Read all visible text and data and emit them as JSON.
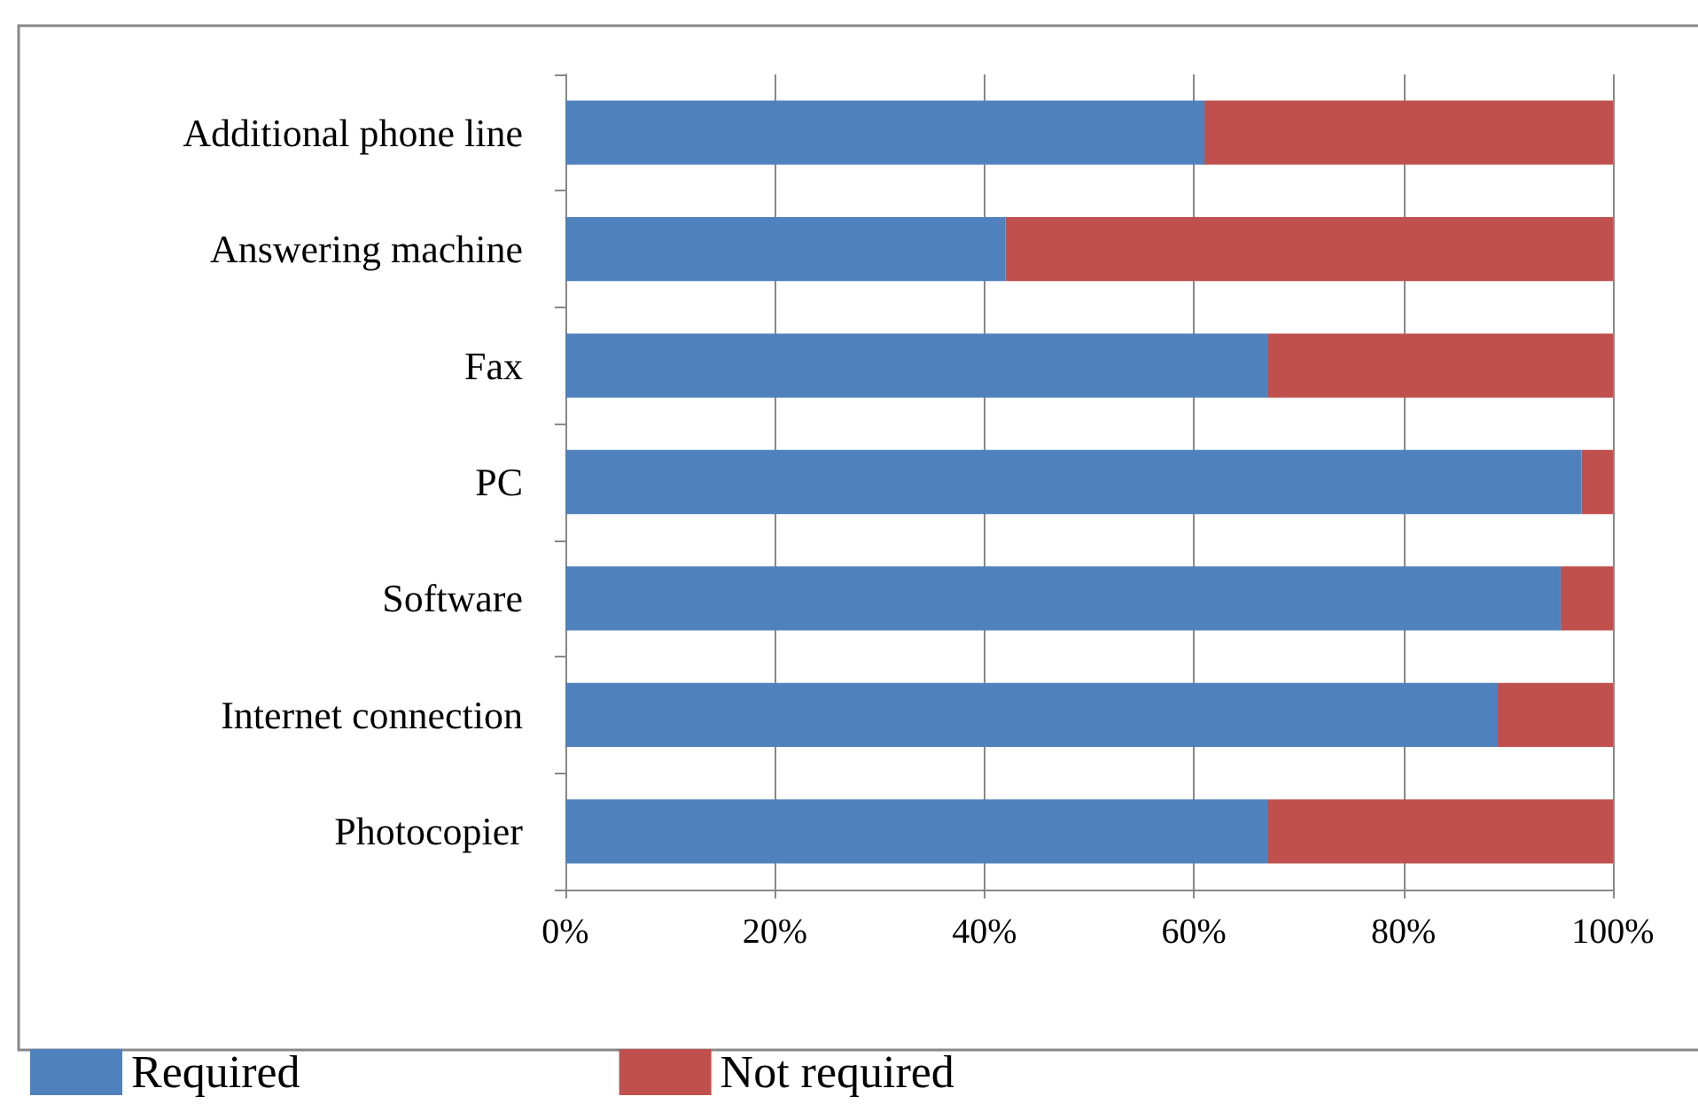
{
  "chart_data": {
    "type": "bar",
    "orientation": "horizontal",
    "stacked": true,
    "categories": [
      "Additional phone line",
      "Answering machine",
      "Fax",
      "PC",
      "Software",
      "Internet connection",
      "Photocopier"
    ],
    "series": [
      {
        "name": "Required",
        "color": "#4f81bd",
        "values": [
          61,
          42,
          67,
          97,
          95,
          89,
          67
        ]
      },
      {
        "name": "Not required",
        "color": "#c0504d",
        "values": [
          39,
          58,
          33,
          3,
          5,
          11,
          33
        ]
      }
    ],
    "xlim": [
      0,
      100
    ],
    "xticks": [
      {
        "value": 0,
        "label": "0%"
      },
      {
        "value": 20,
        "label": "20%"
      },
      {
        "value": 40,
        "label": "40%"
      },
      {
        "value": 60,
        "label": "60%"
      },
      {
        "value": 80,
        "label": "80%"
      },
      {
        "value": 100,
        "label": "100%"
      }
    ],
    "grid": "x",
    "legend": "bottom left"
  }
}
